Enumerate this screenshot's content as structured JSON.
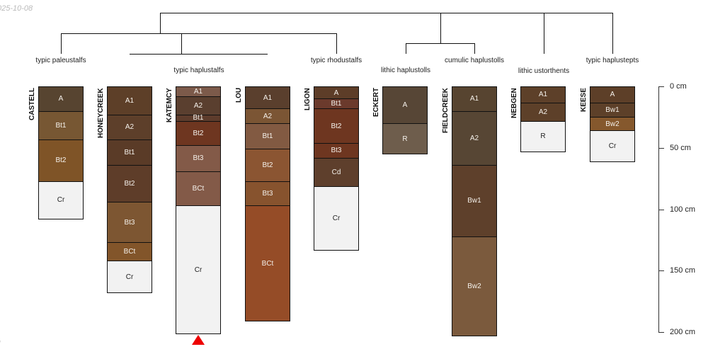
{
  "date_text": "025-10-08",
  "footer_text": "l",
  "groups": [
    "typic paleustalfs",
    "typic haplustalfs",
    "typic rhodustalfs",
    "lithic haplustolls",
    "cumulic haplustolls",
    "lithic ustorthents",
    "typic haplustepts"
  ],
  "axis": {
    "unit": "cm",
    "ticks": [
      0,
      50,
      100,
      150,
      200
    ],
    "labels": [
      "0 cm",
      "50 cm",
      "100 cm",
      "150 cm",
      "200 cm"
    ],
    "max_depth": 200
  },
  "marker": {
    "profile": "KATEMCY",
    "color": "#ff0000"
  },
  "profiles": [
    {
      "name": "CASTELL",
      "horizons": [
        {
          "name": "A",
          "top": 0,
          "bottom": 20,
          "color": "#574430"
        },
        {
          "name": "Bt1",
          "top": 20,
          "bottom": 43,
          "color": "#775733"
        },
        {
          "name": "Bt2",
          "top": 43,
          "bottom": 77,
          "color": "#7f5427"
        },
        {
          "name": "Cr",
          "top": 77,
          "bottom": 108,
          "color": "#f2f2f2"
        }
      ]
    },
    {
      "name": "HONEYCREEK",
      "horizons": [
        {
          "name": "A1",
          "top": 0,
          "bottom": 23,
          "color": "#5d3f28"
        },
        {
          "name": "A2",
          "top": 23,
          "bottom": 43,
          "color": "#5d3f2a"
        },
        {
          "name": "Bt1",
          "top": 43,
          "bottom": 64,
          "color": "#5a3b27"
        },
        {
          "name": "Bt2",
          "top": 64,
          "bottom": 94,
          "color": "#5e3d29"
        },
        {
          "name": "Bt3",
          "top": 94,
          "bottom": 127,
          "color": "#7d5632"
        },
        {
          "name": "BCt",
          "top": 127,
          "bottom": 142,
          "color": "#82552a"
        },
        {
          "name": "Cr",
          "top": 142,
          "bottom": 168,
          "color": "#f2f2f2"
        }
      ]
    },
    {
      "name": "KATEMCY",
      "horizons": [
        {
          "name": "A1",
          "top": 0,
          "bottom": 8,
          "color": "#7c5a4a"
        },
        {
          "name": "A2",
          "top": 8,
          "bottom": 23,
          "color": "#5a3f2f"
        },
        {
          "name": "Bt1",
          "top": 23,
          "bottom": 28,
          "color": "#5d3c2c"
        },
        {
          "name": "Bt2",
          "top": 28,
          "bottom": 48,
          "color": "#6e3620"
        },
        {
          "name": "Bt3",
          "top": 48,
          "bottom": 69,
          "color": "#835a48"
        },
        {
          "name": "BCt",
          "top": 69,
          "bottom": 97,
          "color": "#835a48"
        },
        {
          "name": "Cr",
          "top": 97,
          "bottom": 201,
          "color": "#f2f2f2"
        }
      ]
    },
    {
      "name": "LOU",
      "horizons": [
        {
          "name": "A1",
          "top": 0,
          "bottom": 18,
          "color": "#5a3f2d"
        },
        {
          "name": "A2",
          "top": 18,
          "bottom": 30,
          "color": "#7b5534"
        },
        {
          "name": "Bt1",
          "top": 30,
          "bottom": 51,
          "color": "#825a42"
        },
        {
          "name": "Bt2",
          "top": 51,
          "bottom": 77,
          "color": "#8b5532"
        },
        {
          "name": "Bt3",
          "top": 77,
          "bottom": 97,
          "color": "#87532e"
        },
        {
          "name": "BCt",
          "top": 97,
          "bottom": 191,
          "color": "#954c27"
        }
      ]
    },
    {
      "name": "LIGON",
      "horizons": [
        {
          "name": "A",
          "top": 0,
          "bottom": 10,
          "color": "#5d3d28"
        },
        {
          "name": "Bt1",
          "top": 10,
          "bottom": 18,
          "color": "#6b3a2c"
        },
        {
          "name": "Bt2",
          "top": 18,
          "bottom": 46,
          "color": "#6e3620"
        },
        {
          "name": "Bt3",
          "top": 46,
          "bottom": 58,
          "color": "#6e3620"
        },
        {
          "name": "Cd",
          "top": 58,
          "bottom": 81,
          "color": "#5e3f2c"
        },
        {
          "name": "Cr",
          "top": 81,
          "bottom": 133,
          "color": "#f2f2f2"
        }
      ]
    },
    {
      "name": "ECKERT",
      "horizons": [
        {
          "name": "A",
          "top": 0,
          "bottom": 30,
          "color": "#574636"
        },
        {
          "name": "R",
          "top": 30,
          "bottom": 55,
          "color": "#6e5d4c"
        }
      ]
    },
    {
      "name": "FIELDCREEK",
      "horizons": [
        {
          "name": "A1",
          "top": 0,
          "bottom": 20,
          "color": "#574430"
        },
        {
          "name": "A2",
          "top": 20,
          "bottom": 64,
          "color": "#574634"
        },
        {
          "name": "Bw1",
          "top": 64,
          "bottom": 122,
          "color": "#5e402b"
        },
        {
          "name": "Bw2",
          "top": 122,
          "bottom": 203,
          "color": "#7b5a3d"
        }
      ]
    },
    {
      "name": "NEBGEN",
      "horizons": [
        {
          "name": "A1",
          "top": 0,
          "bottom": 13,
          "color": "#5d4029"
        },
        {
          "name": "A2",
          "top": 13,
          "bottom": 28,
          "color": "#5d4029"
        },
        {
          "name": "R",
          "top": 28,
          "bottom": 53,
          "color": "#f2f2f2"
        }
      ]
    },
    {
      "name": "KEESE",
      "horizons": [
        {
          "name": "A",
          "top": 0,
          "bottom": 13,
          "color": "#5d3f28"
        },
        {
          "name": "Bw1",
          "top": 13,
          "bottom": 25,
          "color": "#5d4029"
        },
        {
          "name": "Bw2",
          "top": 25,
          "bottom": 36,
          "color": "#85582d"
        },
        {
          "name": "Cr",
          "top": 36,
          "bottom": 61,
          "color": "#f2f2f2"
        }
      ]
    }
  ]
}
